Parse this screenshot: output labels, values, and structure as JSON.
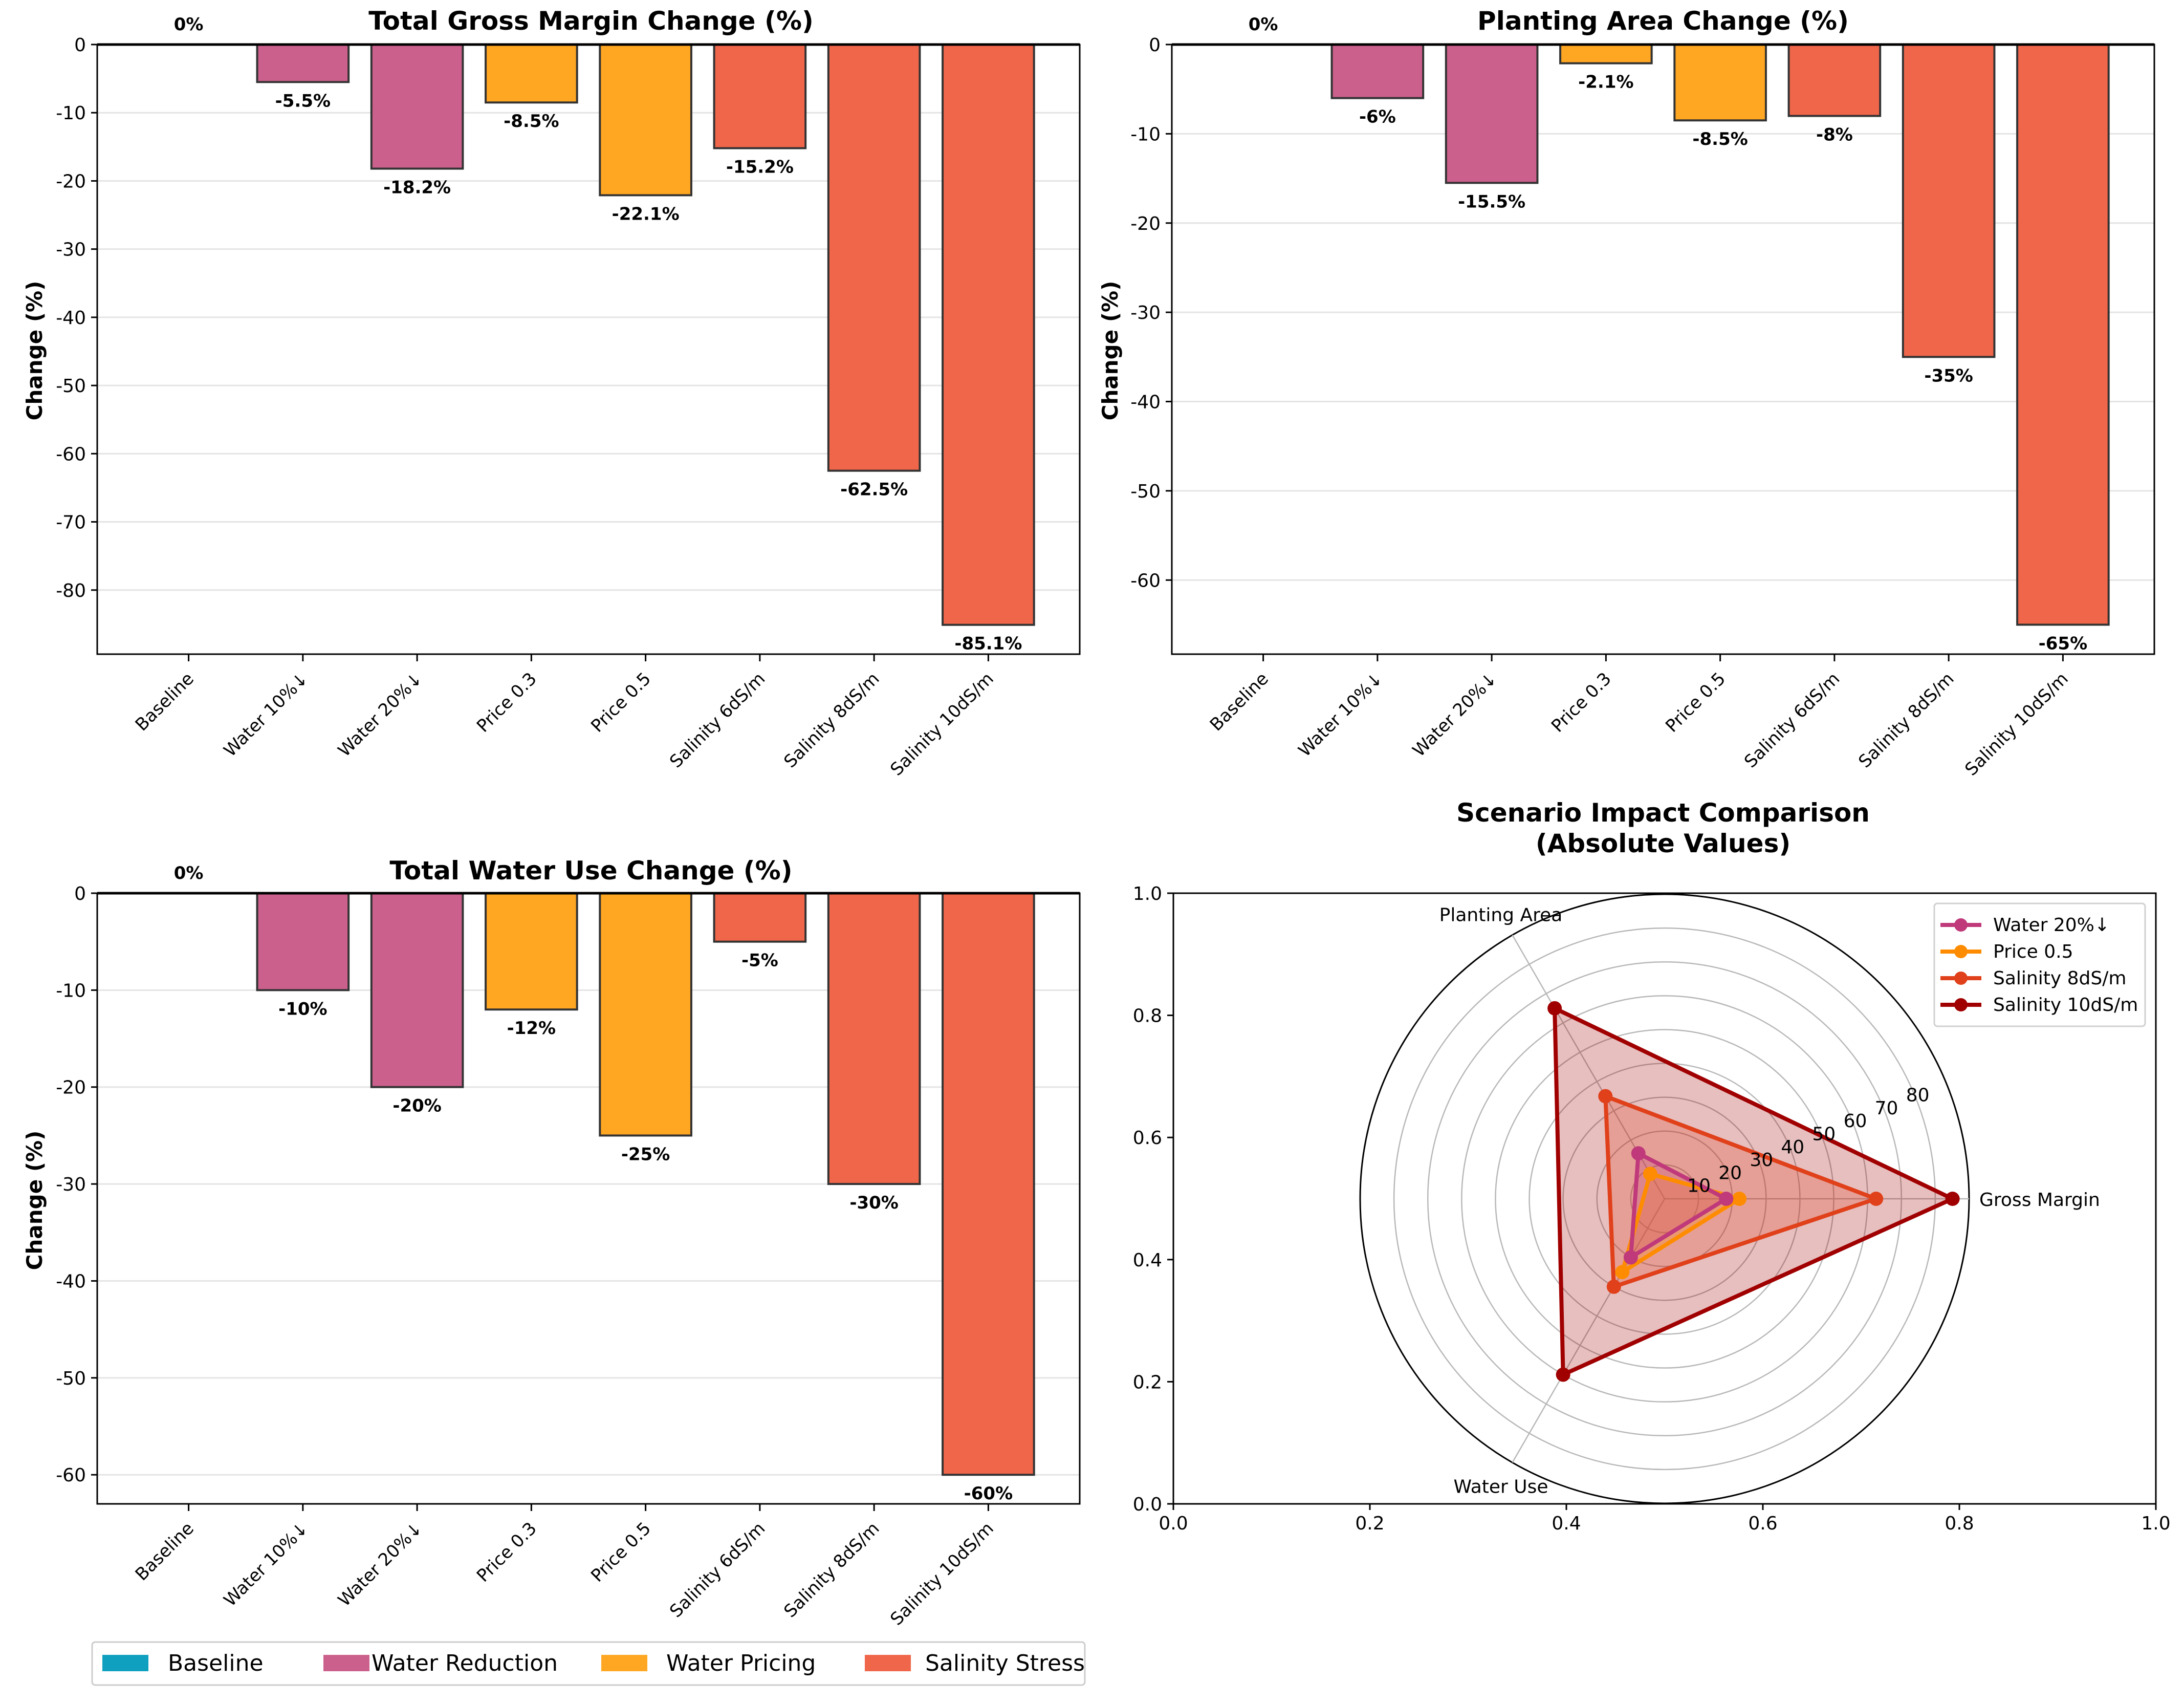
{
  "chart_data": [
    {
      "id": "gross-margin",
      "type": "bar",
      "title": "Total Gross Margin Change (%)",
      "xlabel": "",
      "ylabel": "Change (%)",
      "ylim": [
        -89.4,
        0
      ],
      "yticks": [
        0,
        -10,
        -20,
        -30,
        -40,
        -50,
        -60,
        -70,
        -80
      ],
      "grid": "y",
      "categories": [
        "Baseline",
        "Water 10%↓",
        "Water 20%↓",
        "Price 0.3",
        "Price 0.5",
        "Salinity 6dS/m",
        "Salinity 8dS/m",
        "Salinity 10dS/m"
      ],
      "groups": [
        "Baseline",
        "Water Reduction",
        "Water Reduction",
        "Water Pricing",
        "Water Pricing",
        "Salinity Stress",
        "Salinity Stress",
        "Salinity Stress"
      ],
      "values": [
        0,
        -5.5,
        -18.2,
        -8.5,
        -22.1,
        -15.2,
        -62.5,
        -85.1
      ],
      "labels": [
        "0%",
        "-5.5%",
        "-18.2%",
        "-8.5%",
        "-22.1%",
        "-15.2%",
        "-62.5%",
        "-85.1%"
      ]
    },
    {
      "id": "planting-area",
      "type": "bar",
      "title": "Planting Area Change (%)",
      "xlabel": "",
      "ylabel": "Change (%)",
      "ylim": [
        -68.3,
        0
      ],
      "yticks": [
        0,
        -10,
        -20,
        -30,
        -40,
        -50,
        -60
      ],
      "grid": "y",
      "categories": [
        "Baseline",
        "Water 10%↓",
        "Water 20%↓",
        "Price 0.3",
        "Price 0.5",
        "Salinity 6dS/m",
        "Salinity 8dS/m",
        "Salinity 10dS/m"
      ],
      "groups": [
        "Baseline",
        "Water Reduction",
        "Water Reduction",
        "Water Pricing",
        "Water Pricing",
        "Salinity Stress",
        "Salinity Stress",
        "Salinity Stress"
      ],
      "values": [
        0,
        -6,
        -15.5,
        -2.1,
        -8.5,
        -8,
        -35,
        -65
      ],
      "labels": [
        "0%",
        "-6%",
        "-15.5%",
        "-2.1%",
        "-8.5%",
        "-8%",
        "-35%",
        "-65%"
      ]
    },
    {
      "id": "water-use",
      "type": "bar",
      "title": "Total Water Use Change (%)",
      "xlabel": "",
      "ylabel": "Change (%)",
      "ylim": [
        -63,
        0
      ],
      "yticks": [
        0,
        -10,
        -20,
        -30,
        -40,
        -50,
        -60
      ],
      "grid": "y",
      "categories": [
        "Baseline",
        "Water 10%↓",
        "Water 20%↓",
        "Price 0.3",
        "Price 0.5",
        "Salinity 6dS/m",
        "Salinity 8dS/m",
        "Salinity 10dS/m"
      ],
      "groups": [
        "Baseline",
        "Water Reduction",
        "Water Reduction",
        "Water Pricing",
        "Water Pricing",
        "Salinity Stress",
        "Salinity Stress",
        "Salinity Stress"
      ],
      "values": [
        0,
        -10,
        -20,
        -12,
        -25,
        -5,
        -30,
        -60
      ],
      "labels": [
        "0%",
        "-10%",
        "-20%",
        "-12%",
        "-25%",
        "-5%",
        "-30%",
        "-60%"
      ]
    },
    {
      "id": "radar",
      "type": "radar",
      "title": "Scenario Impact Comparison\n(Absolute Values)",
      "title_lines": [
        "Scenario Impact Comparison",
        "(Absolute Values)"
      ],
      "axes": [
        "Gross Margin",
        "Planting Area",
        "Water Use"
      ],
      "rmax": 90,
      "rticks": [
        10,
        20,
        30,
        40,
        50,
        60,
        70,
        80
      ],
      "outer_xticks": [
        "0.0",
        "0.2",
        "0.4",
        "0.6",
        "0.8",
        "1.0"
      ],
      "outer_yticks": [
        "0.0",
        "0.2",
        "0.4",
        "0.6",
        "0.8",
        "1.0"
      ],
      "legend_position": "upper-right",
      "series": [
        {
          "name": "Water 20%↓",
          "color": "#c0397a",
          "values": [
            18.2,
            15.5,
            20
          ]
        },
        {
          "name": "Price 0.5",
          "color": "#ff8c00",
          "values": [
            22.1,
            8.5,
            25
          ]
        },
        {
          "name": "Salinity 8dS/m",
          "color": "#e0401a",
          "values": [
            62.5,
            35,
            30
          ]
        },
        {
          "name": "Salinity 10dS/m",
          "color": "#a00000",
          "values": [
            85.1,
            65,
            60
          ]
        }
      ]
    }
  ],
  "legend": {
    "position": "bottom-left",
    "items": [
      {
        "label": "Baseline",
        "color": "#0fa0c0"
      },
      {
        "label": "Water Reduction",
        "color": "#cc608c"
      },
      {
        "label": "Water Pricing",
        "color": "#ffa622"
      },
      {
        "label": "Salinity Stress",
        "color": "#f0664a"
      }
    ]
  },
  "colors": {
    "Baseline": "#0fa0c0",
    "Water Reduction": "#cc608c",
    "Water Pricing": "#ffa622",
    "Salinity Stress": "#f0664a",
    "bar_edge": "#333333",
    "grid": "#e4e4e4"
  }
}
